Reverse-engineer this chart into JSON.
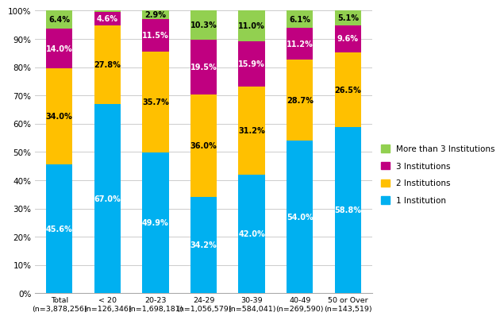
{
  "categories": [
    "Total\n(n=3,878,256)",
    "< 20\n(n=126,346)",
    "20-23\n(n=1,698,181)",
    "24-29\n(n=1,056,579)",
    "30-39\n(n=584,041)",
    "40-49\n(n=269,590)",
    "50 or Over\n(n=143,519)"
  ],
  "series": {
    "1 Institution": [
      45.6,
      67.0,
      49.9,
      34.2,
      42.0,
      54.0,
      58.8
    ],
    "2 Institutions": [
      34.0,
      27.8,
      35.7,
      36.0,
      31.2,
      28.7,
      26.5
    ],
    "3 Institutions": [
      14.0,
      4.6,
      11.5,
      19.5,
      15.9,
      11.2,
      9.6
    ],
    "More than 3 Institutions": [
      6.4,
      0.6,
      2.9,
      10.3,
      11.0,
      6.1,
      5.1
    ]
  },
  "colors": {
    "1 Institution": "#00B0F0",
    "2 Institutions": "#FFC000",
    "3 Institutions": "#C00080",
    "More than 3 Institutions": "#92D050"
  },
  "label_colors": {
    "1 Institution": "white",
    "2 Institutions": "black",
    "3 Institutions": "white",
    "More than 3 Institutions": "black"
  },
  "legend_order": [
    "More than 3 Institutions",
    "3 Institutions",
    "2 Institutions",
    "1 Institution"
  ],
  "ylim": [
    0,
    100
  ],
  "yticks": [
    0,
    10,
    20,
    30,
    40,
    50,
    60,
    70,
    80,
    90,
    100
  ],
  "ytick_labels": [
    "0%",
    "10%",
    "20%",
    "30%",
    "40%",
    "50%",
    "60%",
    "70%",
    "80%",
    "90%",
    "100%"
  ],
  "bar_width": 0.55,
  "background_color": "#FFFFFF",
  "grid_color": "#CCCCCC",
  "label_fontsize": 7.0,
  "tick_fontsize": 7.5,
  "legend_fontsize": 7.5
}
